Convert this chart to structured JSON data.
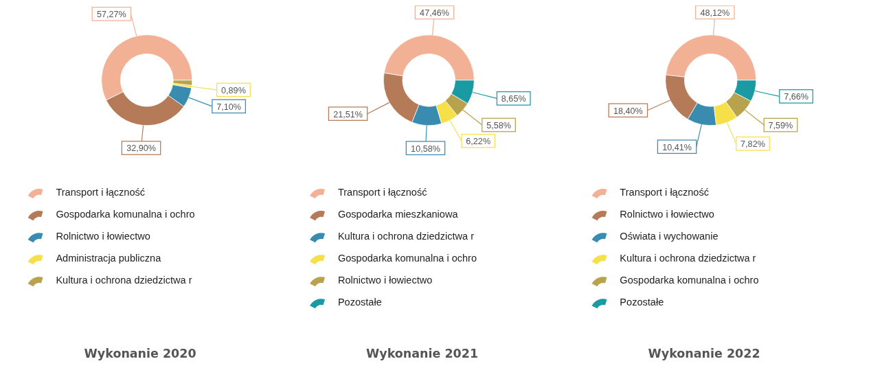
{
  "chart_data": [
    {
      "type": "donut",
      "title": "Wykonanie 2020",
      "categories": [
        "Transport i łączność",
        "Gospodarka komunalna i ochro",
        "Rolnictwo i łowiectwo",
        "Administracja publiczna",
        "Kultura i ochrona dziedzictwa r"
      ],
      "values": [
        57.27,
        32.9,
        7.1,
        0.89,
        1.84
      ],
      "colors": [
        "#f2b194",
        "#b57b58",
        "#3a8bb0",
        "#f5e04a",
        "#b9a24e"
      ],
      "value_labels": [
        "57,27%",
        "32,90%",
        "7,10%",
        "0,89%",
        null
      ],
      "legend": "bottom"
    },
    {
      "type": "donut",
      "title": "Wykonanie 2021",
      "categories": [
        "Transport i łączność",
        "Gospodarka mieszkaniowa",
        "Kultura i ochrona dziedzictwa r",
        "Gospodarka komunalna i ochro",
        "Rolnictwo i łowiectwo",
        "Pozostałe"
      ],
      "values": [
        47.46,
        21.51,
        10.58,
        6.22,
        5.58,
        8.65
      ],
      "colors": [
        "#f2b194",
        "#b57b58",
        "#3a8bb0",
        "#f5e04a",
        "#b9a24e",
        "#1a9aa2"
      ],
      "value_labels": [
        "47,46%",
        "21,51%",
        "10,58%",
        "6,22%",
        "5,58%",
        "8,65%"
      ],
      "legend": "bottom"
    },
    {
      "type": "donut",
      "title": "Wykonanie 2022",
      "categories": [
        "Transport i łączność",
        "Rolnictwo i łowiectwo",
        "Oświata i wychowanie",
        "Kultura i ochrona dziedzictwa r",
        "Gospodarka komunalna i ochro",
        "Pozostałe"
      ],
      "values": [
        48.12,
        18.4,
        10.41,
        7.82,
        7.59,
        7.66
      ],
      "colors": [
        "#f2b194",
        "#b57b58",
        "#3a8bb0",
        "#f5e04a",
        "#b9a24e",
        "#1a9aa2"
      ],
      "value_labels": [
        "48,12%",
        "18,40%",
        "10,41%",
        "7,82%",
        "7,59%",
        "7,66%"
      ],
      "legend": "bottom"
    }
  ]
}
